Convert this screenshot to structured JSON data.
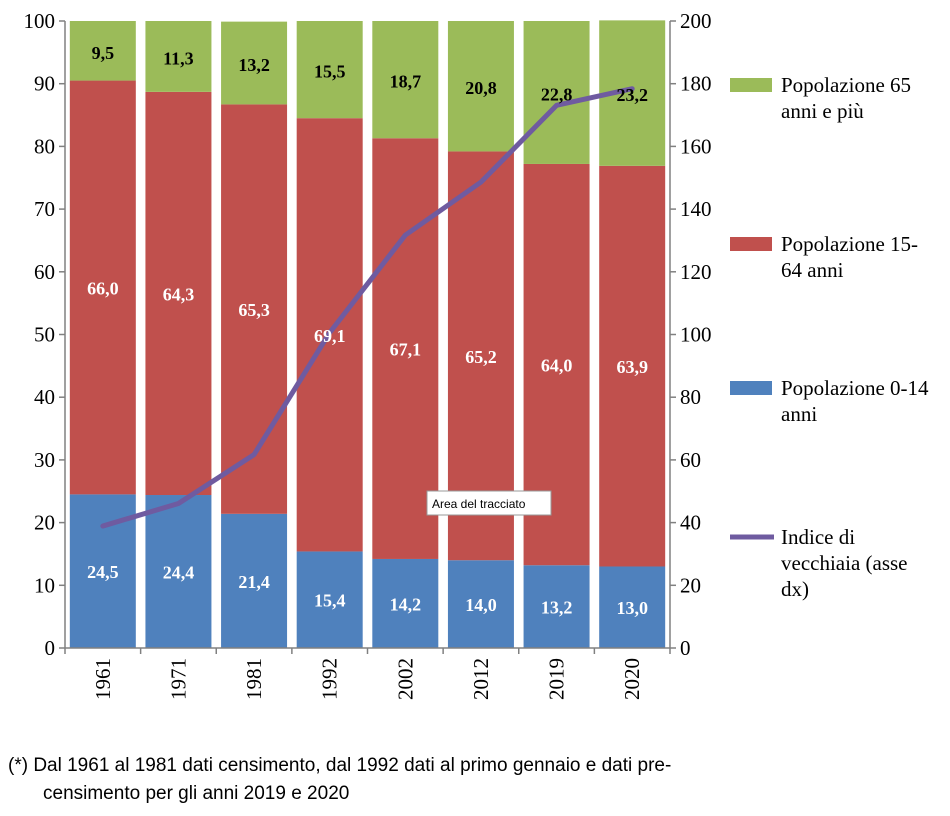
{
  "chart_data": {
    "type": "bar",
    "stacked": true,
    "categories": [
      "1961",
      "1971",
      "1981",
      "1992",
      "2002",
      "2012",
      "2019",
      "2020"
    ],
    "series": [
      {
        "name": "Popolazione 0-14 anni",
        "color": "#4F81BD",
        "values": [
          24.5,
          24.4,
          21.4,
          15.4,
          14.2,
          14.0,
          13.2,
          13.0
        ],
        "labels": [
          "24,5",
          "24,4",
          "21,4",
          "15,4",
          "14,2",
          "14,0",
          "13,2",
          "13,0"
        ]
      },
      {
        "name": "Popolazione 15-64 anni",
        "color": "#C0504D",
        "values": [
          66.0,
          64.3,
          65.3,
          69.1,
          67.1,
          65.2,
          64.0,
          63.9
        ],
        "labels": [
          "66,0",
          "64,3",
          "65,3",
          "69,1",
          "67,1",
          "65,2",
          "64,0",
          "63,9"
        ]
      },
      {
        "name": "Popolazione 65 anni e più",
        "color": "#9BBB59",
        "values": [
          9.5,
          11.3,
          13.2,
          15.5,
          18.7,
          20.8,
          22.8,
          23.2
        ],
        "labels": [
          "9,5",
          "11,3",
          "13,2",
          "15,5",
          "18,7",
          "20,8",
          "22,8",
          "23,2"
        ]
      }
    ],
    "line_series": {
      "name": "Indice di vecchiaia (asse dx)",
      "color": "#6F5BA0",
      "axis": "right",
      "values": [
        38.9,
        46.1,
        61.7,
        100.6,
        131.7,
        148.6,
        173.1,
        178.4
      ]
    },
    "y_left": {
      "min": 0,
      "max": 100,
      "ticks": [
        "0",
        "10",
        "20",
        "30",
        "40",
        "50",
        "60",
        "70",
        "80",
        "90",
        "100"
      ]
    },
    "y_right": {
      "min": 0,
      "max": 200,
      "ticks": [
        "0",
        "20",
        "40",
        "60",
        "80",
        "100",
        "120",
        "140",
        "160",
        "180",
        "200"
      ]
    },
    "legend": {
      "placement": "right",
      "entries": [
        {
          "lines": [
            "Popolazione 65",
            "anni e più"
          ],
          "color": "#9BBB59",
          "kind": "box"
        },
        {
          "lines": [
            "Popolazione 15-",
            "64 anni"
          ],
          "color": "#C0504D",
          "kind": "box"
        },
        {
          "lines": [
            "Popolazione 0-14",
            "anni"
          ],
          "color": "#4F81BD",
          "kind": "box"
        },
        {
          "lines": [
            "Indice di",
            "vecchiaia (asse",
            "dx)"
          ],
          "color": "#6F5BA0",
          "kind": "line"
        }
      ]
    },
    "tooltip": "Area del tracciato",
    "grid": false
  },
  "footnote": {
    "line1": "(*) Dal 1961 al 1981 dati censimento, dal 1992 dati al primo gennaio e dati pre-",
    "line2": "censimento per gli anni 2019 e 2020"
  }
}
